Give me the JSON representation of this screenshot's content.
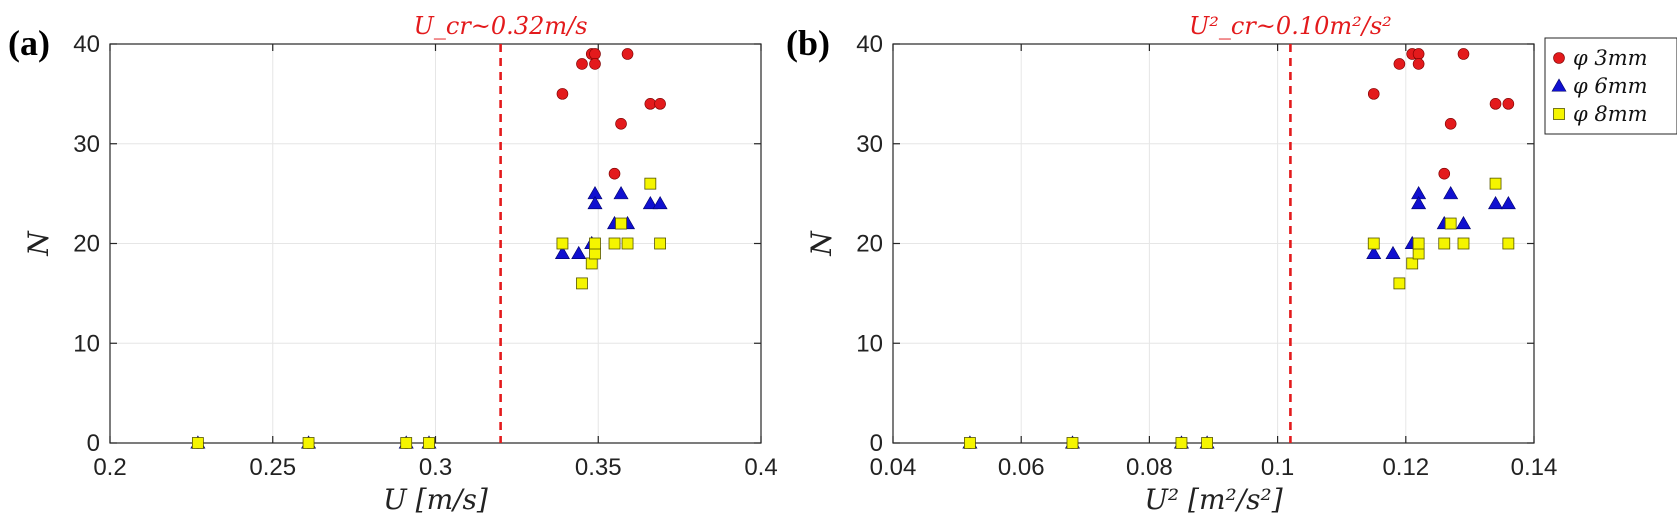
{
  "chart_data": [
    {
      "panel_label": "(a)",
      "type": "scatter",
      "xlabel": "U  [m/s]",
      "ylabel": "N",
      "xlim": [
        0.2,
        0.4
      ],
      "ylim": [
        0,
        40
      ],
      "xticks": [
        "0.2",
        "0.25",
        "0.3",
        "0.35",
        "0.4"
      ],
      "yticks": [
        "0",
        "10",
        "20",
        "30",
        "40"
      ],
      "grid": true,
      "critical_line": {
        "x": 0.32,
        "label": "U_cr~0.32m/s",
        "color": "#e31a1c",
        "style": "dashed"
      },
      "series": [
        {
          "name": "φ 3mm",
          "marker": "circle",
          "color": "#e31a1c",
          "points": [
            [
              0.227,
              0
            ],
            [
              0.261,
              0
            ],
            [
              0.291,
              0
            ],
            [
              0.298,
              0
            ],
            [
              0.339,
              35
            ],
            [
              0.345,
              38
            ],
            [
              0.348,
              39
            ],
            [
              0.349,
              39
            ],
            [
              0.349,
              38
            ],
            [
              0.355,
              27
            ],
            [
              0.357,
              32
            ],
            [
              0.359,
              39
            ],
            [
              0.366,
              34
            ],
            [
              0.369,
              34
            ]
          ]
        },
        {
          "name": "φ 6mm",
          "marker": "triangle",
          "color": "#1010d0",
          "points": [
            [
              0.227,
              0
            ],
            [
              0.261,
              0
            ],
            [
              0.291,
              0
            ],
            [
              0.298,
              0
            ],
            [
              0.339,
              19
            ],
            [
              0.344,
              19
            ],
            [
              0.348,
              20
            ],
            [
              0.349,
              25
            ],
            [
              0.349,
              24
            ],
            [
              0.355,
              22
            ],
            [
              0.357,
              25
            ],
            [
              0.359,
              22
            ],
            [
              0.366,
              24
            ],
            [
              0.369,
              24
            ]
          ]
        },
        {
          "name": "φ 8mm",
          "marker": "square",
          "color": "#f5f500",
          "points": [
            [
              0.227,
              0
            ],
            [
              0.261,
              0
            ],
            [
              0.291,
              0
            ],
            [
              0.298,
              0
            ],
            [
              0.339,
              20
            ],
            [
              0.345,
              16
            ],
            [
              0.348,
              18
            ],
            [
              0.349,
              19
            ],
            [
              0.349,
              20
            ],
            [
              0.355,
              20
            ],
            [
              0.357,
              22
            ],
            [
              0.359,
              20
            ],
            [
              0.366,
              26
            ],
            [
              0.369,
              20
            ]
          ]
        }
      ]
    },
    {
      "panel_label": "(b)",
      "type": "scatter",
      "xlabel": "U²  [m²/s²]",
      "ylabel": "N",
      "xlim": [
        0.04,
        0.14
      ],
      "ylim": [
        0,
        40
      ],
      "xticks": [
        "0.04",
        "0.06",
        "0.08",
        "0.1",
        "0.12",
        "0.14"
      ],
      "yticks": [
        "0",
        "10",
        "20",
        "30",
        "40"
      ],
      "grid": true,
      "critical_line": {
        "x": 0.102,
        "label": "U²_cr~0.10m²/s²",
        "color": "#e31a1c",
        "style": "dashed"
      },
      "legend": {
        "position": "right"
      },
      "series": [
        {
          "name": "φ 3mm",
          "marker": "circle",
          "color": "#e31a1c",
          "points": [
            [
              0.052,
              0
            ],
            [
              0.068,
              0
            ],
            [
              0.085,
              0
            ],
            [
              0.089,
              0
            ],
            [
              0.115,
              35
            ],
            [
              0.119,
              38
            ],
            [
              0.121,
              39
            ],
            [
              0.122,
              39
            ],
            [
              0.122,
              38
            ],
            [
              0.126,
              27
            ],
            [
              0.127,
              32
            ],
            [
              0.129,
              39
            ],
            [
              0.134,
              34
            ],
            [
              0.136,
              34
            ]
          ]
        },
        {
          "name": "φ 6mm",
          "marker": "triangle",
          "color": "#1010d0",
          "points": [
            [
              0.052,
              0
            ],
            [
              0.068,
              0
            ],
            [
              0.085,
              0
            ],
            [
              0.089,
              0
            ],
            [
              0.115,
              19
            ],
            [
              0.118,
              19
            ],
            [
              0.121,
              20
            ],
            [
              0.122,
              25
            ],
            [
              0.122,
              24
            ],
            [
              0.126,
              22
            ],
            [
              0.127,
              25
            ],
            [
              0.129,
              22
            ],
            [
              0.134,
              24
            ],
            [
              0.136,
              24
            ]
          ]
        },
        {
          "name": "φ 8mm",
          "marker": "square",
          "color": "#f5f500",
          "points": [
            [
              0.052,
              0
            ],
            [
              0.068,
              0
            ],
            [
              0.085,
              0
            ],
            [
              0.089,
              0
            ],
            [
              0.115,
              20
            ],
            [
              0.119,
              16
            ],
            [
              0.121,
              18
            ],
            [
              0.122,
              19
            ],
            [
              0.122,
              20
            ],
            [
              0.126,
              20
            ],
            [
              0.127,
              22
            ],
            [
              0.129,
              20
            ],
            [
              0.134,
              26
            ],
            [
              0.136,
              20
            ]
          ]
        }
      ]
    }
  ]
}
